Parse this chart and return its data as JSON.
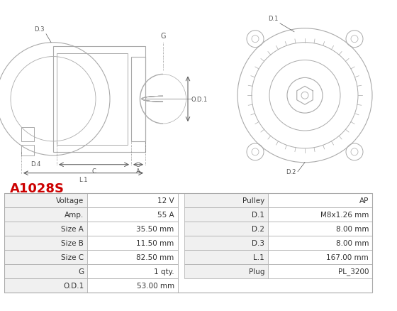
{
  "title": "A1028S",
  "title_color": "#cc0000",
  "image_bg": "#ffffff",
  "table_data": [
    [
      "Voltage",
      "12 V",
      "Pulley",
      "AP"
    ],
    [
      "Amp.",
      "55 A",
      "D.1",
      "M8x1.26 mm"
    ],
    [
      "Size A",
      "35.50 mm",
      "D.2",
      "8.00 mm"
    ],
    [
      "Size B",
      "11.50 mm",
      "D.3",
      "8.00 mm"
    ],
    [
      "Size C",
      "82.50 mm",
      "L.1",
      "167.00 mm"
    ],
    [
      "G",
      "1 qty.",
      "Plug",
      "PL_3200"
    ],
    [
      "O.D.1",
      "53.00 mm",
      "",
      ""
    ]
  ],
  "col_labels": [
    "",
    "",
    "",
    ""
  ],
  "row_colors_odd": "#f0f0f0",
  "row_colors_even": "#ffffff",
  "header_color": "#d0d0d0",
  "border_color": "#aaaaaa",
  "text_color": "#333333",
  "diagram_bg": "#ffffff",
  "diagram_line_color": "#aaaaaa"
}
